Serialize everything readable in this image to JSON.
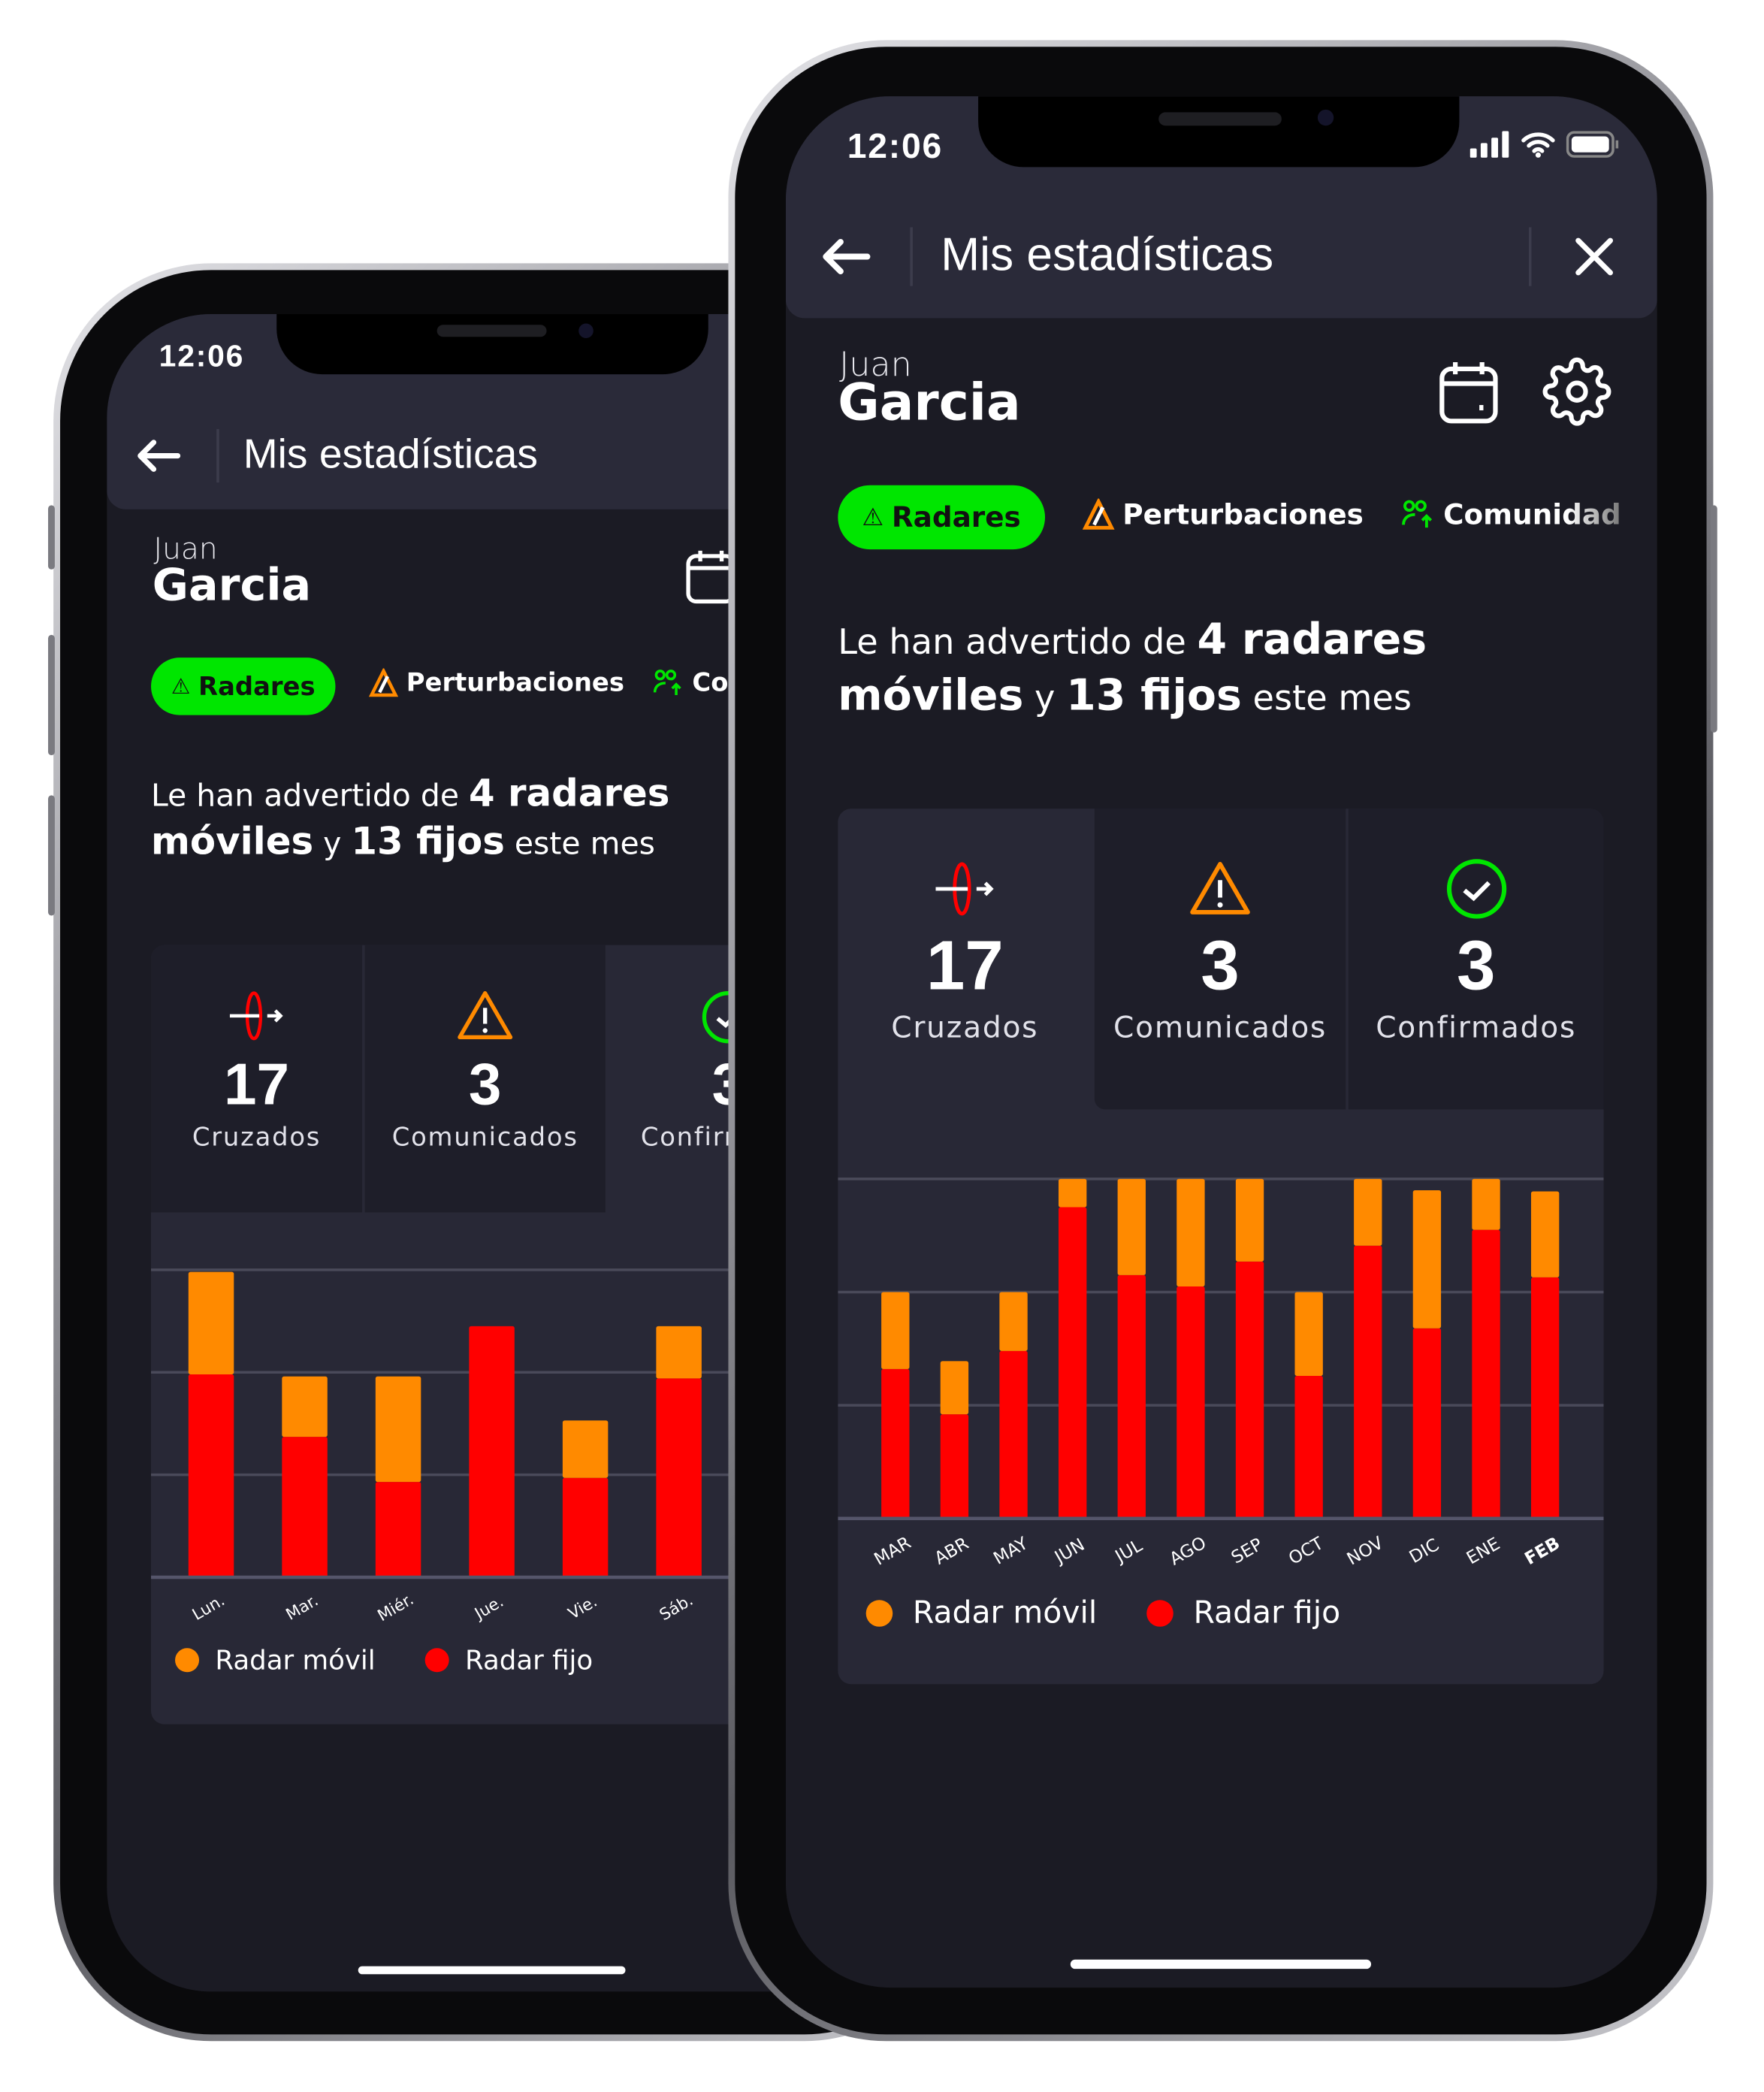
{
  "colors": {
    "accent_green": "#00e600",
    "radar_movil": "#ff8a00",
    "radar_fijo": "#ff0000",
    "header_bg": "#2a2a39",
    "screen_bg": "#1b1b24"
  },
  "back_phone": {
    "status": {
      "time": "12:06"
    },
    "header": {
      "title": "Mis estadísticas",
      "back_icon": "arrow-left"
    },
    "user": {
      "first_name": "Juan",
      "last_name": "Garcia"
    },
    "tabs": [
      {
        "label": "Radares",
        "icon": "radar-icon",
        "active": true
      },
      {
        "label": "Perturbaciones",
        "icon": "warning-pen-icon",
        "active": false
      },
      {
        "label": "Comunidad",
        "icon": "community-icon",
        "active": false
      }
    ],
    "summary": {
      "pre": "Le han advertido de ",
      "b1": "4 radares",
      "b2": "móviles",
      "mid": " y ",
      "b3": "13 fijos",
      "post": " este mes"
    },
    "stats": [
      {
        "value": "17",
        "label": "Cruzados",
        "icon": "crossed-icon"
      },
      {
        "value": "3",
        "label": "Comunicados",
        "icon": "warning-icon"
      },
      {
        "value": "3",
        "label": "Confirmados",
        "icon": "check-circle-icon"
      }
    ],
    "legend": [
      "Radar móvil",
      "Radar fijo"
    ]
  },
  "front_phone": {
    "status": {
      "time": "12:06"
    },
    "header": {
      "title": "Mis estadísticas",
      "back_icon": "arrow-left",
      "close_icon": "close"
    },
    "user": {
      "first_name": "Juan",
      "last_name": "Garcia"
    },
    "tabs": [
      {
        "label": "Radares",
        "icon": "radar-icon",
        "active": true
      },
      {
        "label": "Perturbaciones",
        "icon": "warning-pen-icon",
        "active": false
      },
      {
        "label": "Comunidad",
        "icon": "community-icon",
        "active": false
      }
    ],
    "summary": {
      "pre": "Le han advertido de ",
      "b1": "4 radares",
      "b2": "móviles",
      "mid": " y ",
      "b3": "13 fijos",
      "post": " este mes"
    },
    "stats": [
      {
        "value": "17",
        "label": "Cruzados",
        "icon": "crossed-icon"
      },
      {
        "value": "3",
        "label": "Comunicados",
        "icon": "warning-icon"
      },
      {
        "value": "3",
        "label": "Confirmados",
        "icon": "check-circle-icon"
      }
    ],
    "legend": [
      "Radar móvil",
      "Radar fijo"
    ]
  },
  "chart_data": [
    {
      "type": "bar",
      "stacked": true,
      "grid": true,
      "legend_placement": "bottom-left",
      "categories": [
        "Lun.",
        "Mar.",
        "Miér.",
        "Jue.",
        "Vie.",
        "Sáb."
      ],
      "series": [
        {
          "name": "Radar fijo",
          "color": "#ff0000",
          "values": [
            1.98,
            1.37,
            0.93,
            2.45,
            0.97,
            1.94
          ]
        },
        {
          "name": "Radar móvil",
          "color": "#ff8a00",
          "values": [
            1.0,
            0.59,
            1.03,
            0,
            0.56,
            0.51
          ]
        }
      ],
      "ylim": [
        0,
        3
      ]
    },
    {
      "type": "bar",
      "stacked": true,
      "grid": true,
      "legend_placement": "bottom-left",
      "categories": [
        "MAR",
        "ABR",
        "MAY",
        "JUN",
        "JUL",
        "AGO",
        "SEP",
        "OCT",
        "NOV",
        "DIC",
        "ENE",
        "FEB"
      ],
      "highlight_category": "FEB",
      "series": [
        {
          "name": "Radar fijo",
          "color": "#ff0000",
          "values": [
            1.32,
            0.92,
            1.48,
            2.75,
            2.15,
            2.05,
            2.27,
            1.26,
            2.41,
            1.68,
            2.55,
            2.13
          ]
        },
        {
          "name": "Radar móvil",
          "color": "#ff8a00",
          "values": [
            0.68,
            0.47,
            0.52,
            0.25,
            0.85,
            0.95,
            0.73,
            0.74,
            0.59,
            1.22,
            0.45,
            0.76
          ]
        }
      ],
      "ylim": [
        0,
        3
      ]
    }
  ]
}
